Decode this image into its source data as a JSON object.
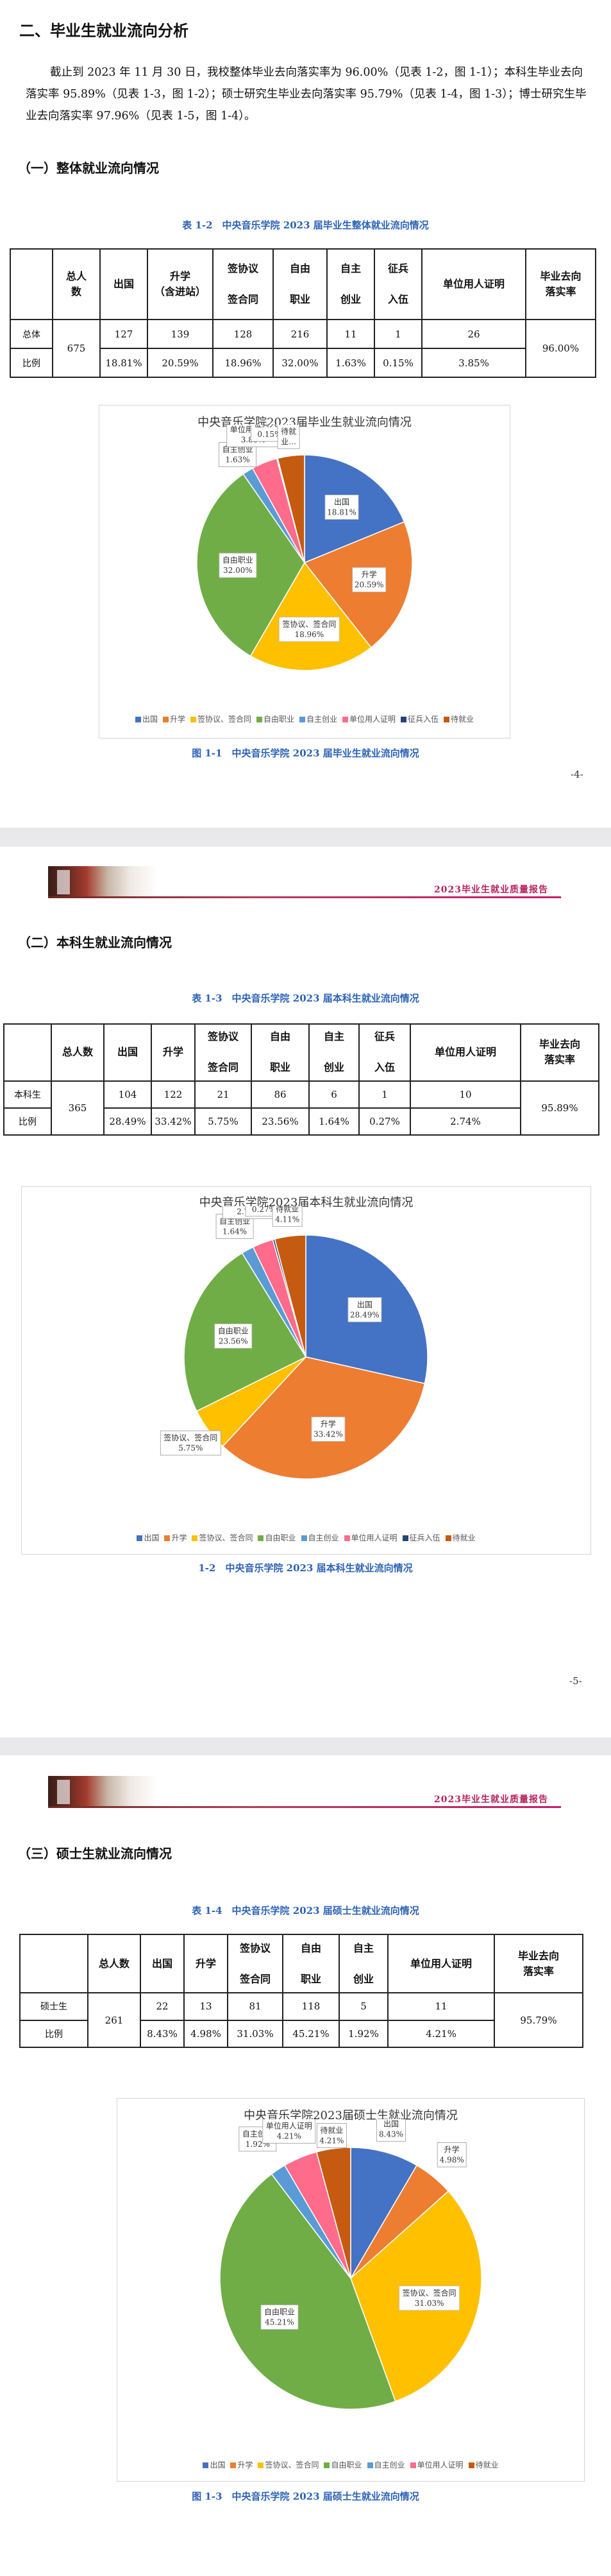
{
  "section_title": "二、毕业生就业流向分析",
  "intro_paragraph": "截止到 2023 年 11 月 30 日，我校整体毕业去向落实率为 96.00%（见表 1-2，图 1-1）；本科生毕业去向落实率 95.89%（见表 1-3，图 1-2）；硕士研究生毕业去向落实率 95.79%（见表 1-4，图 1-3）；博士研究生毕业去向落实率 97.96%（见表 1-5，图 1-4）。",
  "header_title": "2023毕业生就业质量报告",
  "colors": {
    "caption": "#2c62b6",
    "chuguo": "#4472c4",
    "shengxue": "#ed7d31",
    "qianxieyi": "#ffc000",
    "ziyou": "#70ad47",
    "zizhu": "#5b9bd5",
    "danwei": "#ff6b8a",
    "zhengbing": "#264478",
    "daijiuye": "#c55a11"
  },
  "legend_labels": {
    "chuguo": "出国",
    "shengxue": "升学",
    "qianxieyi": "签协议、签合同",
    "ziyou": "自由职业",
    "zizhu": "自主创业",
    "danwei": "单位用人证明",
    "zhengbing": "征兵入伍",
    "daijiuye": "待就业"
  },
  "sections": [
    {
      "heading": "（一）整体就业流向情况",
      "table_caption": "表 1-2　中央音乐学院 2023 届毕业生整体就业流向情况",
      "headers": [
        "",
        "总人数",
        "出国",
        "升学（含进站）",
        "签协议签合同",
        "自由职业",
        "自主创业",
        "征兵入伍",
        "单位用人证明",
        "毕业去向落实率"
      ],
      "row1_label": "总体",
      "row2_label": "比例",
      "total": "675",
      "counts": [
        "127",
        "139",
        "128",
        "216",
        "11",
        "1",
        "26"
      ],
      "ratios": [
        "18.81%",
        "20.59%",
        "18.96%",
        "32.00%",
        "1.63%",
        "0.15%",
        "3.85%"
      ],
      "rate": "96.00%",
      "chart_title": "中央音乐学院2023届毕业生就业流向情况",
      "figure_caption": "图 1-1　中央音乐学院 2023 届毕业生就业流向情况",
      "page_number": "-4-"
    },
    {
      "heading": "（二）本科生就业流向情况",
      "table_caption": "表 1-3　中央音乐学院 2023 届本科生就业流向情况",
      "headers": [
        "",
        "总人数",
        "出国",
        "升学",
        "签协议签合同",
        "自由职业",
        "自主创业",
        "征兵入伍",
        "单位用人证明",
        "毕业去向落实率"
      ],
      "row1_label": "本科生",
      "row2_label": "比例",
      "total": "365",
      "counts": [
        "104",
        "122",
        "21",
        "86",
        "6",
        "1",
        "10"
      ],
      "ratios": [
        "28.49%",
        "33.42%",
        "5.75%",
        "23.56%",
        "1.64%",
        "0.27%",
        "2.74%"
      ],
      "rate": "95.89%",
      "chart_title": "中央音乐学院2023届本科生就业流向情况",
      "figure_caption": "1-2　中央音乐学院 2023 届本科生就业流向情况",
      "page_number": "-5-"
    },
    {
      "heading": "（三）硕士生就业流向情况",
      "table_caption": "表 1-4　中央音乐学院 2023 届硕士生就业流向情况",
      "headers": [
        "",
        "总人数",
        "出国",
        "升学",
        "签协议签合同",
        "自由职业",
        "自主创业",
        "单位用人证明",
        "毕业去向落实率"
      ],
      "row1_label": "硕士生",
      "row2_label": "比例",
      "total": "261",
      "counts": [
        "22",
        "13",
        "81",
        "118",
        "5",
        "11"
      ],
      "ratios": [
        "8.43%",
        "4.98%",
        "31.03%",
        "45.21%",
        "1.92%",
        "4.21%"
      ],
      "rate": "95.79%",
      "chart_title": "中央音乐学院2023届硕士生就业流向情况",
      "figure_caption": "图 1-3　中央音乐学院 2023 届硕士生就业流向情况"
    }
  ],
  "chart_data": [
    {
      "type": "pie",
      "title": "中央音乐学院2023届毕业生就业流向情况",
      "categories": [
        "出国",
        "升学",
        "签协议、签合同",
        "自由职业",
        "自主创业",
        "单位用人证明",
        "征兵入伍",
        "待就业"
      ],
      "values": [
        18.81,
        20.59,
        18.96,
        32.0,
        1.63,
        3.85,
        0.15,
        4.01
      ],
      "labels": [
        "出国\n18.81%",
        "升学\n20.59%",
        "签协议、签合同\n18.96%",
        "自由职业\n32.00%",
        "自主创业\n1.63%",
        "单位用人证明\n3.85%",
        "征兵入伍\n0.15%",
        "待就\n业…"
      ],
      "legend_keys": [
        "chuguo",
        "shengxue",
        "qianxieyi",
        "ziyou",
        "zizhu",
        "danwei",
        "zhengbing",
        "daijiuye"
      ]
    },
    {
      "type": "pie",
      "title": "中央音乐学院2023届本科生就业流向情况",
      "categories": [
        "出国",
        "升学",
        "签协议、签合同",
        "自由职业",
        "自主创业",
        "单位用人证明",
        "征兵入伍",
        "待就业"
      ],
      "values": [
        28.49,
        33.42,
        5.75,
        23.56,
        1.64,
        2.74,
        0.27,
        4.11
      ],
      "labels": [
        "出国\n28.49%",
        "升学\n33.42%",
        "签协议、签合同\n5.75%",
        "自由职业\n23.56%",
        "自主创业\n1.64%",
        "单位用人证明\n2.74%",
        "征兵入伍\n0.27%",
        "待就业\n4.11%"
      ],
      "legend_keys": [
        "chuguo",
        "shengxue",
        "qianxieyi",
        "ziyou",
        "zizhu",
        "danwei",
        "zhengbing",
        "daijiuye"
      ]
    },
    {
      "type": "pie",
      "title": "中央音乐学院2023届硕士生就业流向情况",
      "categories": [
        "出国",
        "升学",
        "签协议、签合同",
        "自由职业",
        "自主创业",
        "单位用人证明",
        "待就业"
      ],
      "values": [
        8.43,
        4.98,
        31.03,
        45.21,
        1.92,
        4.21,
        4.21
      ],
      "labels": [
        "出国\n8.43%",
        "升学\n4.98%",
        "签协议、签合同\n31.03%",
        "自由职业\n45.21%",
        "自主创业\n1.92%",
        "单位用人证明\n4.21%",
        "待就业\n4.21%"
      ],
      "legend_keys": [
        "chuguo",
        "shengxue",
        "qianxieyi",
        "ziyou",
        "zizhu",
        "danwei",
        "daijiuye"
      ]
    }
  ]
}
